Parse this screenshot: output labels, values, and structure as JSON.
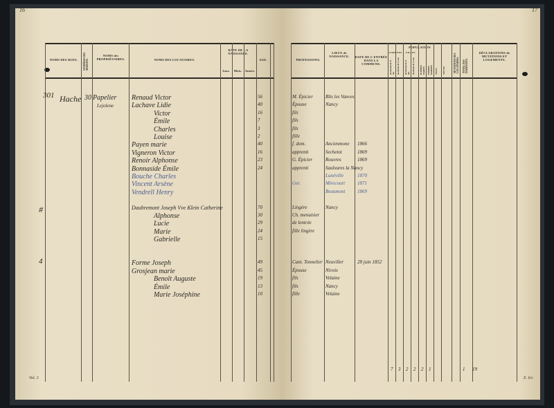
{
  "page_numbers": {
    "left": "16",
    "right": "17"
  },
  "left_headers": {
    "rues": "NOMS DES RUES.",
    "numero": "NUMÉROS DES MAISONS.",
    "proprietaires": "NOMS des PROPRIÉTAIRES.",
    "locataires": "NOMS DES LOCATAIRES.",
    "date": "DATE DE LA NAISSANCE.",
    "jour": "Jour.",
    "mois": "Mois.",
    "annee": "Année.",
    "age": "AGE."
  },
  "right_headers": {
    "professions": "PROFESSIONS.",
    "lieux": "LIEUX de NAISSANCE.",
    "entree": "DATE DE L'ENTRÉE DANS LA COMMUNE.",
    "population": "POPULATION",
    "garcons": "GARÇONS",
    "filles": "FILLES",
    "sub": [
      "au-dessous de 21 ans",
      "au-dessus de 21 ans",
      "au-dessous de 21 ans",
      "au-dessus de 21 ans",
      "HOMMES MARIÉS",
      "FEMMES MARIÉES",
      "VEUFS",
      "VEUVES"
    ],
    "mutations": "MUTATIONS DES LOCATAIRES.",
    "total": "TOTAL DES HABITANTS.",
    "declarations": "DÉCLARATIONS de MUTATIONS ET LOGEMENTS."
  },
  "margin_numbers": [
    "301",
    "#",
    "4"
  ],
  "street": "Hache",
  "house_number": "30",
  "owner": [
    "Papelier",
    "Lejolene"
  ],
  "entries": [
    {
      "name": "Renaud Victor",
      "age": "56",
      "prof": "M. Épicier",
      "lieu": "Blis les Vanves",
      "blue": false
    },
    {
      "name": "Lachave Lidie",
      "age": "40",
      "prof": "Épouse",
      "lieu": "Nancy",
      "blue": false
    },
    {
      "name": "Victor",
      "age": "16",
      "prof": "fils",
      "lieu": "",
      "blue": false
    },
    {
      "name": "Émile",
      "age": "7",
      "prof": "fils",
      "lieu": "",
      "blue": false
    },
    {
      "name": "Charles",
      "age": "3",
      "prof": "fils",
      "lieu": "",
      "blue": false
    },
    {
      "name": "Louise",
      "age": "2",
      "prof": "fille",
      "lieu": "",
      "blue": false
    },
    {
      "name": "Payen marie",
      "age": "40",
      "prof": "f. dom.",
      "lieu": "Ancienmone",
      "entree": "1866",
      "blue": false
    },
    {
      "name": "Vigneron Victor",
      "age": "16",
      "prof": "apprenti",
      "lieu": "Sechetot",
      "entree": "1869",
      "blue": false
    },
    {
      "name": "Renoir Alphonse",
      "age": "23",
      "prof": "G. Épicier",
      "lieu": "Rouvres",
      "entree": "1869",
      "blue": false
    },
    {
      "name": "Bonnaside Émile",
      "age": "24",
      "prof": "apprenti",
      "lieu": "Saulxures la Nancy",
      "blue": false
    },
    {
      "name": "Bouche Charles",
      "age": "",
      "prof": "",
      "lieu": "Lunéville",
      "entree": "1870",
      "blue": true
    },
    {
      "name": "Vincent Arsène",
      "age": "",
      "prof": "Ger.",
      "lieu": "Mirecourt",
      "entree": "1871",
      "blue": true
    },
    {
      "name": "Vendrell Henry",
      "age": "",
      "prof": "",
      "lieu": "Beaumont",
      "entree": "1869",
      "blue": true
    },
    {
      "name": "",
      "age": "",
      "prof": "",
      "lieu": "",
      "blue": false
    },
    {
      "name": "Daubremont Joseph Vve Klein Catherine",
      "age": "70",
      "prof": "Lingère",
      "lieu": "Nancy",
      "blue": false
    },
    {
      "name": "Alphonse",
      "age": "30",
      "prof": "Ch. menuisier",
      "lieu": "",
      "blue": false
    },
    {
      "name": "Lucie",
      "age": "29",
      "prof": "de lentrée",
      "lieu": "",
      "blue": false
    },
    {
      "name": "Marie",
      "age": "24",
      "prof": "fille lingère",
      "lieu": "",
      "blue": false
    },
    {
      "name": "Gabrielle",
      "age": "15",
      "prof": "",
      "lieu": "",
      "blue": false
    },
    {
      "name": "",
      "age": "",
      "prof": "",
      "lieu": "",
      "blue": false
    },
    {
      "name": "",
      "age": "",
      "prof": "",
      "lieu": "",
      "blue": false
    },
    {
      "name": "Forme Joseph",
      "age": "49",
      "prof": "Cant. Tonnelier",
      "lieu": "Neuviller",
      "entree": "28 juin 1852",
      "blue": false
    },
    {
      "name": "Grosjean marie",
      "age": "45",
      "prof": "Épouse",
      "lieu": "Nivois",
      "blue": false
    },
    {
      "name": "Benoît Auguste",
      "age": "19",
      "prof": "fils",
      "lieu": "Velaine",
      "blue": false
    },
    {
      "name": "Émile",
      "age": "13",
      "prof": "fils",
      "lieu": "Nancy",
      "blue": false
    },
    {
      "name": "Marie Joséphine",
      "age": "10",
      "prof": "fille",
      "lieu": "Velaine",
      "blue": false
    }
  ],
  "totals": [
    "7",
    "3",
    "2",
    "2",
    "2",
    "1",
    "1",
    "19"
  ],
  "footer": {
    "left": "Vol. 3",
    "right": "E. 6/c"
  }
}
